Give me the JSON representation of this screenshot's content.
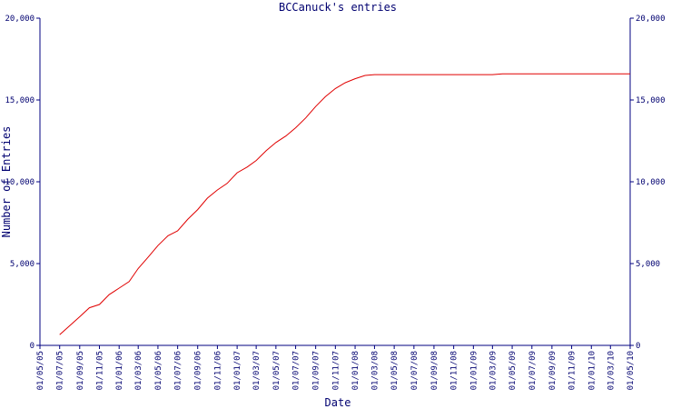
{
  "chart_data": {
    "type": "line",
    "title": "BCCanuck's entries",
    "xlabel": "Date",
    "ylabel": "Number of Entries",
    "x": [
      "01/07/05",
      "01/08/05",
      "01/09/05",
      "01/10/05",
      "01/11/05",
      "01/12/05",
      "01/01/06",
      "01/02/06",
      "01/03/06",
      "01/04/06",
      "01/05/06",
      "01/06/06",
      "01/07/06",
      "01/08/06",
      "01/09/06",
      "01/10/06",
      "01/11/06",
      "01/12/06",
      "01/01/07",
      "01/02/07",
      "01/03/07",
      "01/04/07",
      "01/05/07",
      "01/06/07",
      "01/07/07",
      "01/08/07",
      "01/09/07",
      "01/10/07",
      "01/11/07",
      "01/12/07",
      "01/01/08",
      "01/02/08",
      "01/03/08",
      "01/06/08",
      "01/09/08",
      "01/12/08",
      "01/03/09",
      "01/04/09",
      "01/07/09",
      "01/10/09",
      "01/01/10",
      "01/05/10"
    ],
    "series": [
      {
        "name": "entries",
        "color": "#e00000",
        "values": [
          650,
          1200,
          1750,
          2300,
          2500,
          3100,
          3500,
          3900,
          4700,
          5400,
          6100,
          6700,
          7000,
          7700,
          8300,
          9000,
          9500,
          9900,
          10550,
          10900,
          11300,
          11900,
          12400,
          12800,
          13300,
          13900,
          14600,
          15200,
          15700,
          16050,
          16300,
          16500,
          16550,
          16550,
          16550,
          16550,
          16550,
          16600,
          16600,
          16600,
          16600,
          16600
        ]
      }
    ],
    "xlim": [
      "01/05/05",
      "01/05/10"
    ],
    "xticks": [
      "01/05/05",
      "01/07/05",
      "01/09/05",
      "01/11/05",
      "01/01/06",
      "01/03/06",
      "01/05/06",
      "01/07/06",
      "01/09/06",
      "01/11/06",
      "01/01/07",
      "01/03/07",
      "01/05/07",
      "01/07/07",
      "01/09/07",
      "01/11/07",
      "01/01/08",
      "01/03/08",
      "01/05/08",
      "01/07/08",
      "01/09/08",
      "01/11/08",
      "01/01/09",
      "01/03/09",
      "01/05/09",
      "01/07/09",
      "01/09/09",
      "01/11/09",
      "01/01/10",
      "01/03/10",
      "01/05/10"
    ],
    "ylim": [
      0,
      20000
    ],
    "yticks": [
      0,
      {
        "value": 5000,
        "label": "5,000"
      },
      {
        "value": 10000,
        "label": "10,000"
      },
      {
        "value": 15000,
        "label": "15,000"
      },
      {
        "value": 20000,
        "label": "20,000"
      }
    ],
    "y2lim": [
      0,
      20000
    ],
    "y2ticks": [
      0,
      {
        "value": 5000,
        "label": "5,000"
      },
      {
        "value": 10000,
        "label": "10,000"
      },
      {
        "value": 15000,
        "label": "15,000"
      },
      {
        "value": 20000,
        "label": "20,000"
      }
    ]
  }
}
